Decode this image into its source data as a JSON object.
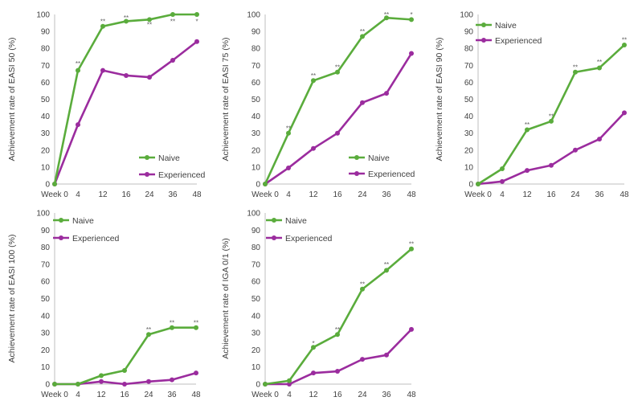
{
  "chart_data": [
    {
      "type": "line",
      "ylabel": "Achievement rate of EASI 50 (%)",
      "categories": [
        "Week 0",
        "4",
        "12",
        "16",
        "24",
        "36",
        "48"
      ],
      "ylim": [
        0,
        100
      ],
      "yticks": [
        "0",
        "10",
        "20",
        "30",
        "40",
        "50",
        "60",
        "70",
        "80",
        "90",
        "100"
      ],
      "legend_position": "bottom-right",
      "series": [
        {
          "name": "Naive",
          "color": "#5aac3c",
          "values": [
            0,
            67,
            93,
            96,
            97,
            100,
            100
          ]
        },
        {
          "name": "Experienced",
          "color": "#9b2c9e",
          "values": [
            0,
            35,
            67,
            64,
            63,
            73,
            84
          ]
        }
      ],
      "annotations": [
        {
          "category": "4",
          "y": 71,
          "text": "**"
        },
        {
          "category": "12",
          "y": 96,
          "text": "**"
        },
        {
          "category": "16",
          "y": 98,
          "text": "**"
        },
        {
          "category": "24",
          "y": 94,
          "text": "**"
        },
        {
          "category": "36",
          "y": 96,
          "text": "**"
        },
        {
          "category": "48",
          "y": 96,
          "text": "*"
        }
      ]
    },
    {
      "type": "line",
      "ylabel": "Achievement rate of EASI 75 (%)",
      "categories": [
        "Week 0",
        "4",
        "12",
        "16",
        "24",
        "36",
        "48"
      ],
      "ylim": [
        0,
        100
      ],
      "yticks": [
        "0",
        "10",
        "20",
        "30",
        "40",
        "50",
        "60",
        "70",
        "80",
        "90",
        "100"
      ],
      "legend_position": "bottom-right",
      "series": [
        {
          "name": "Naive",
          "color": "#5aac3c",
          "values": [
            0,
            30,
            61,
            66,
            87,
            98,
            97
          ]
        },
        {
          "name": "Experienced",
          "color": "#9b2c9e",
          "values": [
            0,
            9.5,
            21,
            30,
            48,
            53.5,
            77
          ]
        }
      ],
      "annotations": [
        {
          "category": "4",
          "y": 33,
          "text": "**"
        },
        {
          "category": "12",
          "y": 64,
          "text": "**"
        },
        {
          "category": "16",
          "y": 69,
          "text": "**"
        },
        {
          "category": "24",
          "y": 90,
          "text": "**"
        },
        {
          "category": "36",
          "y": 100,
          "text": "**"
        },
        {
          "category": "48",
          "y": 100,
          "text": "*"
        }
      ]
    },
    {
      "type": "line",
      "ylabel": "Achievement rate of EASI 90 (%)",
      "categories": [
        "Week 0",
        "4",
        "12",
        "16",
        "24",
        "36",
        "48"
      ],
      "ylim": [
        0,
        100
      ],
      "yticks": [
        "0",
        "10",
        "20",
        "30",
        "40",
        "50",
        "60",
        "70",
        "80",
        "90",
        "100"
      ],
      "legend_position": "top-left",
      "series": [
        {
          "name": "Naive",
          "color": "#5aac3c",
          "values": [
            0,
            9,
            32,
            37,
            66,
            68.5,
            82
          ]
        },
        {
          "name": "Experienced",
          "color": "#9b2c9e",
          "values": [
            0,
            1.5,
            8,
            11,
            20,
            26.5,
            42
          ]
        }
      ],
      "annotations": [
        {
          "category": "12",
          "y": 35,
          "text": "**"
        },
        {
          "category": "16",
          "y": 40,
          "text": "**"
        },
        {
          "category": "24",
          "y": 69,
          "text": "**"
        },
        {
          "category": "36",
          "y": 72,
          "text": "**"
        },
        {
          "category": "48",
          "y": 85,
          "text": "**"
        }
      ]
    },
    {
      "type": "line",
      "ylabel": "Achievement rate of EASI 100 (%)",
      "categories": [
        "Week 0",
        "4",
        "12",
        "16",
        "24",
        "36",
        "48"
      ],
      "ylim": [
        0,
        100
      ],
      "yticks": [
        "0",
        "10",
        "20",
        "30",
        "40",
        "50",
        "60",
        "70",
        "80",
        "90",
        "100"
      ],
      "legend_position": "top-left",
      "series": [
        {
          "name": "Naive",
          "color": "#5aac3c",
          "values": [
            0,
            0,
            5,
            8,
            29,
            33,
            33
          ]
        },
        {
          "name": "Experienced",
          "color": "#9b2c9e",
          "values": [
            0,
            0,
            1.5,
            0,
            1.5,
            2.5,
            6.5
          ]
        }
      ],
      "annotations": [
        {
          "category": "24",
          "y": 32,
          "text": "**"
        },
        {
          "category": "36",
          "y": 36,
          "text": "**"
        },
        {
          "category": "48",
          "y": 36,
          "text": "**"
        }
      ]
    },
    {
      "type": "line",
      "ylabel": "Achievement rate of IGA 0/1 (%)",
      "categories": [
        "Week 0",
        "4",
        "12",
        "16",
        "24",
        "36",
        "48"
      ],
      "ylim": [
        0,
        100
      ],
      "yticks": [
        "0",
        "10",
        "20",
        "30",
        "40",
        "50",
        "60",
        "70",
        "80",
        "90",
        "100"
      ],
      "legend_position": "top-left",
      "series": [
        {
          "name": "Naive",
          "color": "#5aac3c",
          "values": [
            0,
            2,
            21.5,
            29,
            55.5,
            66.5,
            79
          ]
        },
        {
          "name": "Experienced",
          "color": "#9b2c9e",
          "values": [
            0,
            0,
            6.5,
            7.5,
            14.5,
            17,
            32
          ]
        }
      ],
      "annotations": [
        {
          "category": "12",
          "y": 24,
          "text": "*"
        },
        {
          "category": "16",
          "y": 32,
          "text": "**"
        },
        {
          "category": "24",
          "y": 58.5,
          "text": "**"
        },
        {
          "category": "36",
          "y": 70,
          "text": "**"
        },
        {
          "category": "48",
          "y": 82,
          "text": "**"
        }
      ]
    }
  ]
}
